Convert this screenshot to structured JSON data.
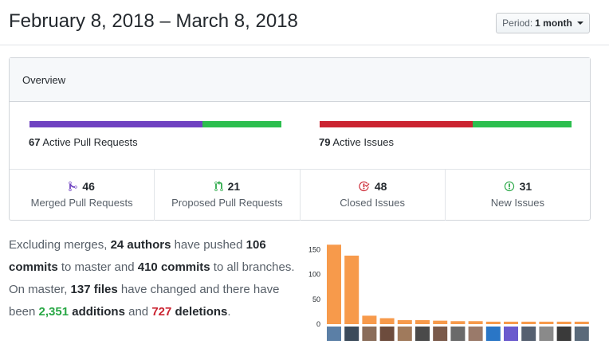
{
  "header": {
    "title": "February 8, 2018 – March 8, 2018",
    "period_prefix": "Period:",
    "period_value": "1 month"
  },
  "overview": {
    "title": "Overview",
    "active_prs_count": "67",
    "active_prs_label": "Active Pull Requests",
    "active_issues_count": "79",
    "active_issues_label": "Active Issues",
    "pr_bar": {
      "merged": 46,
      "proposed": 21,
      "merged_color": "#6f42c1",
      "proposed_color": "#2cbe4e"
    },
    "issue_bar": {
      "closed": 48,
      "new": 31,
      "closed_color": "#cb2431",
      "new_color": "#2cbe4e"
    },
    "stats": [
      {
        "value": "46",
        "label": "Merged Pull Requests",
        "icon": "git-merge-icon",
        "color": "#6f42c1"
      },
      {
        "value": "21",
        "label": "Proposed Pull Requests",
        "icon": "git-pull-request-icon",
        "color": "#28a745"
      },
      {
        "value": "48",
        "label": "Closed Issues",
        "icon": "issue-closed-icon",
        "color": "#cb2431"
      },
      {
        "value": "31",
        "label": "New Issues",
        "icon": "issue-opened-icon",
        "color": "#28a745"
      }
    ]
  },
  "summary": {
    "t1": "Excluding merges, ",
    "authors": "24 authors",
    "t2": " have pushed ",
    "commits_master": "106 commits",
    "t3": " to master and ",
    "commits_all": "410 commits",
    "t4": " to all branches. On master, ",
    "files": "137 files",
    "t5": " have changed and there have been ",
    "additions": "2,351",
    "t6": " ",
    "additions_word": "additions",
    "t7": " and ",
    "deletions": "727",
    "t8": " ",
    "deletions_word": "deletions",
    "t9": "."
  },
  "chart_data": {
    "type": "bar",
    "title": "",
    "xlabel": "",
    "ylabel": "",
    "ylim": [
      0,
      162
    ],
    "yticks": [
      "0",
      "50",
      "100",
      "150"
    ],
    "values": [
      160,
      138,
      17,
      12,
      8,
      8,
      7,
      6,
      6,
      5,
      5,
      5,
      5,
      5,
      5
    ],
    "bar_color": "#f79a4b"
  }
}
